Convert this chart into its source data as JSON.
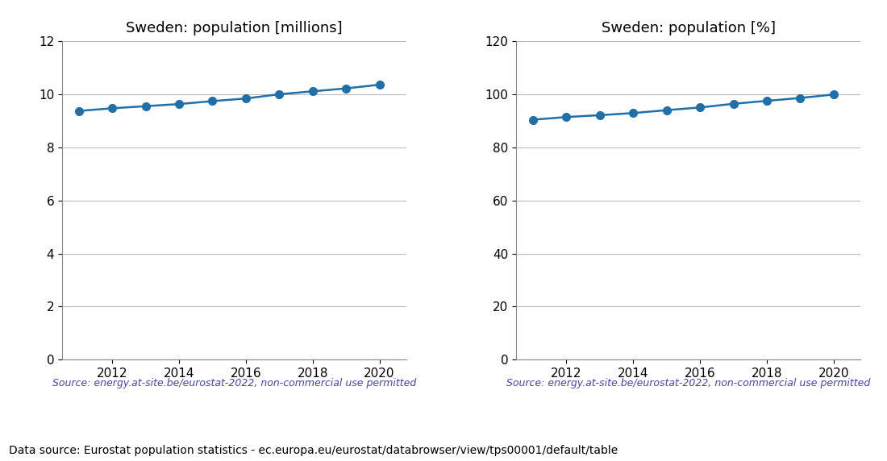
{
  "years": [
    2011,
    2012,
    2013,
    2014,
    2015,
    2016,
    2017,
    2018,
    2019,
    2020
  ],
  "population_millions": [
    9.38,
    9.48,
    9.56,
    9.64,
    9.75,
    9.85,
    10.01,
    10.12,
    10.23,
    10.37
  ],
  "population_pct": [
    90.5,
    91.5,
    92.2,
    93.0,
    94.1,
    95.1,
    96.5,
    97.6,
    98.7,
    100.0
  ],
  "title_millions": "Sweden: population [millions]",
  "title_pct": "Sweden: population [%]",
  "ylim_millions": [
    0,
    12
  ],
  "ylim_pct": [
    0,
    120
  ],
  "yticks_millions": [
    0,
    2,
    4,
    6,
    8,
    10,
    12
  ],
  "yticks_pct": [
    0,
    20,
    40,
    60,
    80,
    100,
    120
  ],
  "line_color": "#1f6fa8",
  "marker": "o",
  "markersize": 7,
  "linewidth": 1.8,
  "source_text": "Source: energy.at-site.be/eurostat-2022, non-commercial use permitted",
  "source_color": "#4444bb",
  "footer_text": "Data source: Eurostat population statistics - ec.europa.eu/eurostat/databrowser/view/tps00001/default/table",
  "footer_color": "#000000",
  "grid_color": "#bbbbbb",
  "background_color": "#ffffff",
  "title_fontsize": 13,
  "tick_fontsize": 11,
  "source_fontsize": 9,
  "footer_fontsize": 10
}
